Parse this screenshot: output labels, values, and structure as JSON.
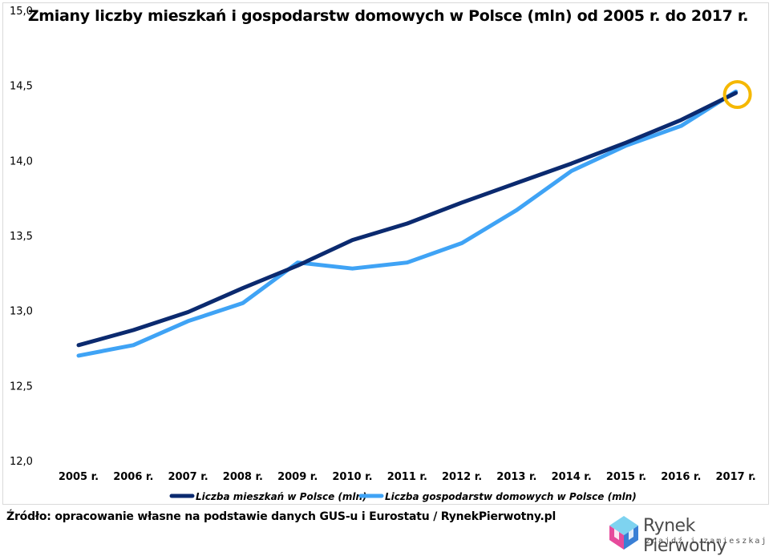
{
  "chart_data": {
    "type": "line",
    "title": "Zmiany liczby mieszkań i gospodarstw domowych w Polsce (mln) od 2005 r. do 2017 r.",
    "categories": [
      "2005 r.",
      "2006 r.",
      "2007 r.",
      "2008 r.",
      "2009 r.",
      "2010 r.",
      "2011 r.",
      "2012 r.",
      "2013 r.",
      "2014 r.",
      "2015 r.",
      "2016 r.",
      "2017 r."
    ],
    "y_ticks": [
      "12,0",
      "12,5",
      "13,0",
      "13,5",
      "14,0",
      "14,5",
      "15,0"
    ],
    "ylim": [
      12.0,
      15.0
    ],
    "grid": false,
    "legend_position": "bottom",
    "series": [
      {
        "name": "Liczba mieszkań w Polsce (mln)",
        "color": "#0b2a6f",
        "values": [
          12.77,
          12.87,
          12.99,
          13.15,
          13.3,
          13.47,
          13.58,
          13.72,
          13.85,
          13.98,
          14.12,
          14.27,
          14.45
        ]
      },
      {
        "name": "Liczba gospodarstw domowych w Polsce (mln)",
        "color": "#3fa3f5",
        "values": [
          12.7,
          12.77,
          12.93,
          13.05,
          13.32,
          13.28,
          13.32,
          13.45,
          13.67,
          13.93,
          14.1,
          14.23,
          14.46
        ]
      }
    ],
    "highlight_color": "#f5b800"
  },
  "footer": {
    "source": "Źródło: opracowanie własne na podstawie danych GUS-u i Eurostatu / RynekPierwotny.pl"
  },
  "logo": {
    "name": "Rynek Pierwotny",
    "tagline": "znajdź i zamieszkaj"
  }
}
